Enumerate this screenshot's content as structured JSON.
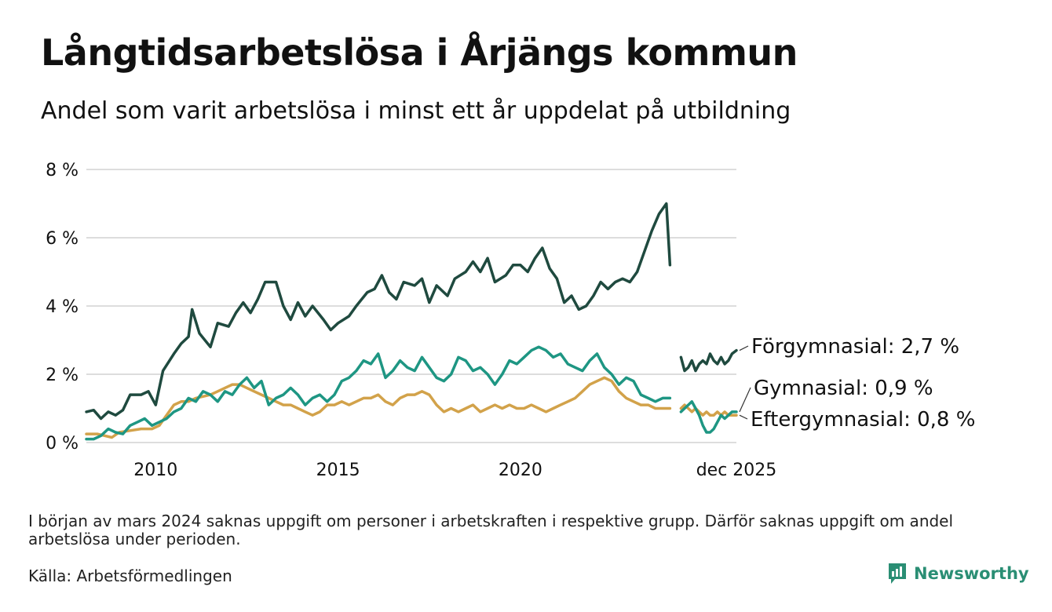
{
  "title": "Långtidsarbetslösa i Årjängs kommun",
  "subtitle": "Andel som varit arbetslösa i minst ett år uppdelat på utbildning",
  "note": "I början av mars 2024 saknas uppgift om personer i arbetskraften i respektive grupp. Därför saknas uppgift om andel arbetslösa under perioden.",
  "source": "Källa: Arbetsförmedlingen",
  "brand": "Newsworthy",
  "colors": {
    "forgymnasial": "#1f4a3f",
    "gymnasial": "#1e9683",
    "eftergymnasial": "#d2a24a",
    "grid": "#dddddd",
    "text": "#111111",
    "brand": "#2a8e74"
  },
  "chart_data": {
    "type": "line",
    "title": "Långtidsarbetslösa i Årjängs kommun",
    "xlabel": "",
    "ylabel": "",
    "ylim": [
      0,
      8
    ],
    "xlim": [
      2008.1,
      2025.92
    ],
    "y_ticks": [
      {
        "value": 0,
        "label": "0 %"
      },
      {
        "value": 2,
        "label": "2 %"
      },
      {
        "value": 4,
        "label": "4 %"
      },
      {
        "value": 6,
        "label": "6 %"
      },
      {
        "value": 8,
        "label": "8 %"
      }
    ],
    "x_ticks": [
      {
        "value": 2010,
        "label": "2010"
      },
      {
        "value": 2015,
        "label": "2015"
      },
      {
        "value": 2020,
        "label": "2020"
      },
      {
        "value": 2025.92,
        "label": "dec 2025"
      }
    ],
    "gap": [
      2024.12,
      2024.4
    ],
    "series": [
      {
        "name": "Förgymnasial",
        "end_label": "Förgymnasial: 2,7 %",
        "points": [
          [
            2008.1,
            0.9
          ],
          [
            2008.3,
            0.95
          ],
          [
            2008.5,
            0.7
          ],
          [
            2008.7,
            0.9
          ],
          [
            2008.9,
            0.8
          ],
          [
            2009.1,
            0.95
          ],
          [
            2009.3,
            1.4
          ],
          [
            2009.6,
            1.4
          ],
          [
            2009.8,
            1.5
          ],
          [
            2010.0,
            1.1
          ],
          [
            2010.2,
            2.1
          ],
          [
            2010.5,
            2.6
          ],
          [
            2010.7,
            2.9
          ],
          [
            2010.9,
            3.1
          ],
          [
            2011.0,
            3.9
          ],
          [
            2011.2,
            3.2
          ],
          [
            2011.5,
            2.8
          ],
          [
            2011.7,
            3.5
          ],
          [
            2012.0,
            3.4
          ],
          [
            2012.2,
            3.8
          ],
          [
            2012.4,
            4.1
          ],
          [
            2012.6,
            3.8
          ],
          [
            2012.8,
            4.2
          ],
          [
            2013.0,
            4.7
          ],
          [
            2013.3,
            4.7
          ],
          [
            2013.5,
            4.0
          ],
          [
            2013.7,
            3.6
          ],
          [
            2013.9,
            4.1
          ],
          [
            2014.1,
            3.7
          ],
          [
            2014.3,
            4.0
          ],
          [
            2014.6,
            3.6
          ],
          [
            2014.8,
            3.3
          ],
          [
            2015.0,
            3.5
          ],
          [
            2015.3,
            3.7
          ],
          [
            2015.5,
            4.0
          ],
          [
            2015.8,
            4.4
          ],
          [
            2016.0,
            4.5
          ],
          [
            2016.2,
            4.9
          ],
          [
            2016.4,
            4.4
          ],
          [
            2016.6,
            4.2
          ],
          [
            2016.8,
            4.7
          ],
          [
            2017.1,
            4.6
          ],
          [
            2017.3,
            4.8
          ],
          [
            2017.5,
            4.1
          ],
          [
            2017.7,
            4.6
          ],
          [
            2018.0,
            4.3
          ],
          [
            2018.2,
            4.8
          ],
          [
            2018.5,
            5.0
          ],
          [
            2018.7,
            5.3
          ],
          [
            2018.9,
            5.0
          ],
          [
            2019.1,
            5.4
          ],
          [
            2019.3,
            4.7
          ],
          [
            2019.6,
            4.9
          ],
          [
            2019.8,
            5.2
          ],
          [
            2020.0,
            5.2
          ],
          [
            2020.2,
            5.0
          ],
          [
            2020.4,
            5.4
          ],
          [
            2020.6,
            5.7
          ],
          [
            2020.8,
            5.1
          ],
          [
            2021.0,
            4.8
          ],
          [
            2021.2,
            4.1
          ],
          [
            2021.4,
            4.3
          ],
          [
            2021.6,
            3.9
          ],
          [
            2021.8,
            4.0
          ],
          [
            2022.0,
            4.3
          ],
          [
            2022.2,
            4.7
          ],
          [
            2022.4,
            4.5
          ],
          [
            2022.6,
            4.7
          ],
          [
            2022.8,
            4.8
          ],
          [
            2023.0,
            4.7
          ],
          [
            2023.2,
            5.0
          ],
          [
            2023.4,
            5.6
          ],
          [
            2023.6,
            6.2
          ],
          [
            2023.8,
            6.7
          ],
          [
            2024.0,
            7.0
          ],
          [
            2024.1,
            5.2
          ]
        ]
      },
      {
        "name": "Gymnasial",
        "end_label": "Gymnasial: 0,9 %",
        "points": [
          [
            2008.1,
            0.1
          ],
          [
            2008.3,
            0.1
          ],
          [
            2008.5,
            0.2
          ],
          [
            2008.7,
            0.4
          ],
          [
            2008.9,
            0.3
          ],
          [
            2009.1,
            0.25
          ],
          [
            2009.3,
            0.5
          ],
          [
            2009.5,
            0.6
          ],
          [
            2009.7,
            0.7
          ],
          [
            2009.9,
            0.5
          ],
          [
            2010.1,
            0.6
          ],
          [
            2010.3,
            0.7
          ],
          [
            2010.5,
            0.9
          ],
          [
            2010.7,
            1.0
          ],
          [
            2010.9,
            1.3
          ],
          [
            2011.1,
            1.2
          ],
          [
            2011.3,
            1.5
          ],
          [
            2011.5,
            1.4
          ],
          [
            2011.7,
            1.2
          ],
          [
            2011.9,
            1.5
          ],
          [
            2012.1,
            1.4
          ],
          [
            2012.3,
            1.7
          ],
          [
            2012.5,
            1.9
          ],
          [
            2012.7,
            1.6
          ],
          [
            2012.9,
            1.8
          ],
          [
            2013.1,
            1.1
          ],
          [
            2013.3,
            1.3
          ],
          [
            2013.5,
            1.4
          ],
          [
            2013.7,
            1.6
          ],
          [
            2013.9,
            1.4
          ],
          [
            2014.1,
            1.1
          ],
          [
            2014.3,
            1.3
          ],
          [
            2014.5,
            1.4
          ],
          [
            2014.7,
            1.2
          ],
          [
            2014.9,
            1.4
          ],
          [
            2015.1,
            1.8
          ],
          [
            2015.3,
            1.9
          ],
          [
            2015.5,
            2.1
          ],
          [
            2015.7,
            2.4
          ],
          [
            2015.9,
            2.3
          ],
          [
            2016.1,
            2.6
          ],
          [
            2016.3,
            1.9
          ],
          [
            2016.5,
            2.1
          ],
          [
            2016.7,
            2.4
          ],
          [
            2016.9,
            2.2
          ],
          [
            2017.1,
            2.1
          ],
          [
            2017.3,
            2.5
          ],
          [
            2017.5,
            2.2
          ],
          [
            2017.7,
            1.9
          ],
          [
            2017.9,
            1.8
          ],
          [
            2018.1,
            2.0
          ],
          [
            2018.3,
            2.5
          ],
          [
            2018.5,
            2.4
          ],
          [
            2018.7,
            2.1
          ],
          [
            2018.9,
            2.2
          ],
          [
            2019.1,
            2.0
          ],
          [
            2019.3,
            1.7
          ],
          [
            2019.5,
            2.0
          ],
          [
            2019.7,
            2.4
          ],
          [
            2019.9,
            2.3
          ],
          [
            2020.1,
            2.5
          ],
          [
            2020.3,
            2.7
          ],
          [
            2020.5,
            2.8
          ],
          [
            2020.7,
            2.7
          ],
          [
            2020.9,
            2.5
          ],
          [
            2021.1,
            2.6
          ],
          [
            2021.3,
            2.3
          ],
          [
            2021.5,
            2.2
          ],
          [
            2021.7,
            2.1
          ],
          [
            2021.9,
            2.4
          ],
          [
            2022.1,
            2.6
          ],
          [
            2022.3,
            2.2
          ],
          [
            2022.5,
            2.0
          ],
          [
            2022.7,
            1.7
          ],
          [
            2022.9,
            1.9
          ],
          [
            2023.1,
            1.8
          ],
          [
            2023.3,
            1.4
          ],
          [
            2023.5,
            1.3
          ],
          [
            2023.7,
            1.2
          ],
          [
            2023.9,
            1.3
          ],
          [
            2024.1,
            1.3
          ]
        ]
      },
      {
        "name": "Eftergymnasial",
        "end_label": "Eftergymnasial: 0,8 %",
        "points": [
          [
            2008.1,
            0.25
          ],
          [
            2008.4,
            0.25
          ],
          [
            2008.6,
            0.2
          ],
          [
            2008.8,
            0.15
          ],
          [
            2009.0,
            0.3
          ],
          [
            2009.3,
            0.35
          ],
          [
            2009.6,
            0.4
          ],
          [
            2009.9,
            0.4
          ],
          [
            2010.1,
            0.5
          ],
          [
            2010.3,
            0.8
          ],
          [
            2010.5,
            1.1
          ],
          [
            2010.7,
            1.2
          ],
          [
            2010.9,
            1.2
          ],
          [
            2011.1,
            1.3
          ],
          [
            2011.3,
            1.35
          ],
          [
            2011.5,
            1.4
          ],
          [
            2011.7,
            1.5
          ],
          [
            2011.9,
            1.6
          ],
          [
            2012.1,
            1.7
          ],
          [
            2012.3,
            1.7
          ],
          [
            2012.5,
            1.6
          ],
          [
            2012.7,
            1.5
          ],
          [
            2012.9,
            1.4
          ],
          [
            2013.1,
            1.3
          ],
          [
            2013.3,
            1.2
          ],
          [
            2013.5,
            1.1
          ],
          [
            2013.7,
            1.1
          ],
          [
            2013.9,
            1.0
          ],
          [
            2014.1,
            0.9
          ],
          [
            2014.3,
            0.8
          ],
          [
            2014.5,
            0.9
          ],
          [
            2014.7,
            1.1
          ],
          [
            2014.9,
            1.1
          ],
          [
            2015.1,
            1.2
          ],
          [
            2015.3,
            1.1
          ],
          [
            2015.5,
            1.2
          ],
          [
            2015.7,
            1.3
          ],
          [
            2015.9,
            1.3
          ],
          [
            2016.1,
            1.4
          ],
          [
            2016.3,
            1.2
          ],
          [
            2016.5,
            1.1
          ],
          [
            2016.7,
            1.3
          ],
          [
            2016.9,
            1.4
          ],
          [
            2017.1,
            1.4
          ],
          [
            2017.3,
            1.5
          ],
          [
            2017.5,
            1.4
          ],
          [
            2017.7,
            1.1
          ],
          [
            2017.9,
            0.9
          ],
          [
            2018.1,
            1.0
          ],
          [
            2018.3,
            0.9
          ],
          [
            2018.5,
            1.0
          ],
          [
            2018.7,
            1.1
          ],
          [
            2018.9,
            0.9
          ],
          [
            2019.1,
            1.0
          ],
          [
            2019.3,
            1.1
          ],
          [
            2019.5,
            1.0
          ],
          [
            2019.7,
            1.1
          ],
          [
            2019.9,
            1.0
          ],
          [
            2020.1,
            1.0
          ],
          [
            2020.3,
            1.1
          ],
          [
            2020.5,
            1.0
          ],
          [
            2020.7,
            0.9
          ],
          [
            2020.9,
            1.0
          ],
          [
            2021.1,
            1.1
          ],
          [
            2021.3,
            1.2
          ],
          [
            2021.5,
            1.3
          ],
          [
            2021.7,
            1.5
          ],
          [
            2021.9,
            1.7
          ],
          [
            2022.1,
            1.8
          ],
          [
            2022.3,
            1.9
          ],
          [
            2022.5,
            1.8
          ],
          [
            2022.7,
            1.5
          ],
          [
            2022.9,
            1.3
          ],
          [
            2023.1,
            1.2
          ],
          [
            2023.3,
            1.1
          ],
          [
            2023.5,
            1.1
          ],
          [
            2023.7,
            1.0
          ],
          [
            2023.9,
            1.0
          ],
          [
            2024.1,
            1.0
          ]
        ]
      }
    ],
    "series_after_gap": [
      {
        "name": "Förgymnasial",
        "points": [
          [
            2024.4,
            2.5
          ],
          [
            2024.5,
            2.1
          ],
          [
            2024.6,
            2.2
          ],
          [
            2024.7,
            2.4
          ],
          [
            2024.8,
            2.1
          ],
          [
            2024.9,
            2.3
          ],
          [
            2025.0,
            2.4
          ],
          [
            2025.1,
            2.3
          ],
          [
            2025.2,
            2.6
          ],
          [
            2025.3,
            2.4
          ],
          [
            2025.4,
            2.3
          ],
          [
            2025.5,
            2.5
          ],
          [
            2025.6,
            2.3
          ],
          [
            2025.7,
            2.4
          ],
          [
            2025.8,
            2.6
          ],
          [
            2025.92,
            2.7
          ]
        ]
      },
      {
        "name": "Gymnasial",
        "points": [
          [
            2024.4,
            0.9
          ],
          [
            2024.5,
            1.0
          ],
          [
            2024.6,
            1.1
          ],
          [
            2024.7,
            1.2
          ],
          [
            2024.8,
            1.0
          ],
          [
            2024.9,
            0.8
          ],
          [
            2025.0,
            0.5
          ],
          [
            2025.1,
            0.3
          ],
          [
            2025.2,
            0.3
          ],
          [
            2025.3,
            0.4
          ],
          [
            2025.4,
            0.6
          ],
          [
            2025.5,
            0.8
          ],
          [
            2025.6,
            0.7
          ],
          [
            2025.7,
            0.8
          ],
          [
            2025.8,
            0.9
          ],
          [
            2025.92,
            0.9
          ]
        ]
      },
      {
        "name": "Eftergymnasial",
        "points": [
          [
            2024.4,
            1.0
          ],
          [
            2024.5,
            1.1
          ],
          [
            2024.6,
            1.0
          ],
          [
            2024.7,
            0.9
          ],
          [
            2024.8,
            1.0
          ],
          [
            2024.9,
            0.9
          ],
          [
            2025.0,
            0.8
          ],
          [
            2025.1,
            0.9
          ],
          [
            2025.2,
            0.8
          ],
          [
            2025.3,
            0.8
          ],
          [
            2025.4,
            0.9
          ],
          [
            2025.5,
            0.8
          ],
          [
            2025.6,
            0.9
          ],
          [
            2025.7,
            0.8
          ],
          [
            2025.8,
            0.8
          ],
          [
            2025.92,
            0.8
          ]
        ]
      }
    ]
  }
}
